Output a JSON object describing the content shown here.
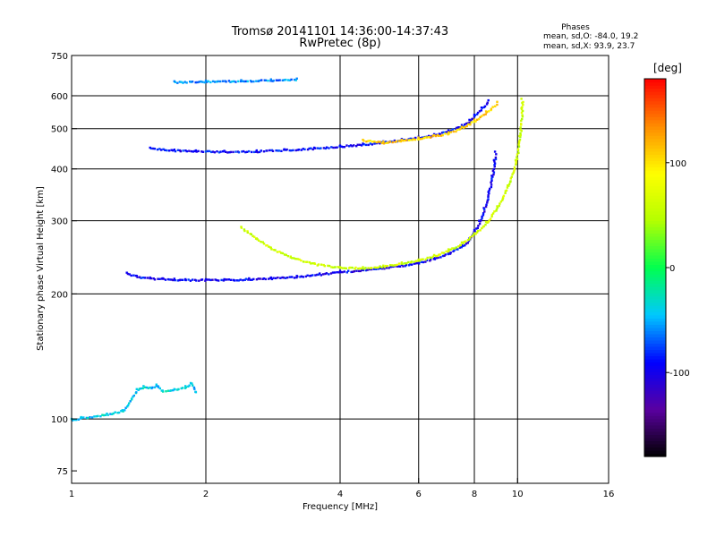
{
  "chart_data": {
    "type": "scatter",
    "title": "Tromsø 20141101 14:36:00-14:37:43",
    "subtitle": "RwPretec (8p)",
    "stats": {
      "heading": "Phases",
      "line_o": "mean, sd,O: -84.0, 19.2",
      "line_x": "mean, sd,X:  93.9, 23.7"
    },
    "xlabel": "Frequency [MHz]",
    "ylabel": "Stationary phase Virtual Height [km]",
    "x_scale": "log",
    "y_scale": "log",
    "xlim": [
      1,
      16
    ],
    "ylim": [
      70,
      750
    ],
    "x_ticks": [
      1,
      2,
      4,
      6,
      8,
      10,
      16
    ],
    "x_tick_labels": [
      "1",
      "2",
      "4",
      "6",
      "8",
      "10",
      "16"
    ],
    "y_ticks": [
      75,
      100,
      200,
      300,
      400,
      500,
      600,
      750
    ],
    "y_tick_labels": [
      "75",
      "100",
      "200",
      "300",
      "400",
      "500",
      "600",
      "750"
    ],
    "grid": true,
    "colorbar": {
      "label": "[deg]",
      "range": [
        -180,
        180
      ],
      "ticks": [
        100,
        0,
        -100
      ],
      "tick_labels": [
        "100",
        "0",
        "-100"
      ],
      "colors": [
        "#000000",
        "#5a00a0",
        "#0000ff",
        "#00c8ff",
        "#00ff50",
        "#b4ff00",
        "#ffff00",
        "#ff8c00",
        "#ff0000"
      ]
    },
    "series": [
      {
        "trace": "o-mode-f-layer",
        "points": [
          [
            1.33,
            225
          ],
          [
            1.4,
            221
          ],
          [
            1.5,
            219
          ],
          [
            1.6,
            218
          ],
          [
            1.7,
            217.5
          ],
          [
            1.8,
            217
          ],
          [
            2.0,
            217
          ],
          [
            2.2,
            217
          ],
          [
            2.5,
            218
          ],
          [
            2.8,
            219
          ],
          [
            3.2,
            221
          ],
          [
            3.6,
            224
          ],
          [
            4.0,
            227
          ],
          [
            4.5,
            229
          ],
          [
            5.0,
            232
          ],
          [
            5.5,
            235
          ],
          [
            6.0,
            239
          ],
          [
            6.5,
            244
          ],
          [
            7.0,
            252
          ],
          [
            7.5,
            262
          ],
          [
            7.8,
            272
          ],
          [
            8.0,
            285
          ],
          [
            8.2,
            300
          ],
          [
            8.4,
            322
          ],
          [
            8.6,
            352
          ],
          [
            8.75,
            385
          ],
          [
            8.85,
            420
          ],
          [
            8.9,
            440
          ]
        ],
        "phase": -95
      },
      {
        "trace": "o-mode-f2-echo",
        "points": [
          [
            1.5,
            450
          ],
          [
            1.7,
            445
          ],
          [
            1.9,
            443
          ],
          [
            2.2,
            442
          ],
          [
            2.6,
            443
          ],
          [
            3.0,
            446
          ],
          [
            3.5,
            450
          ],
          [
            4.0,
            455
          ],
          [
            4.5,
            460
          ],
          [
            5.0,
            466
          ],
          [
            5.5,
            472
          ],
          [
            6.0,
            478
          ],
          [
            6.5,
            485
          ],
          [
            7.0,
            495
          ],
          [
            7.5,
            510
          ],
          [
            7.8,
            525
          ],
          [
            8.0,
            540
          ],
          [
            8.3,
            562
          ],
          [
            8.6,
            585
          ]
        ],
        "phase": -90
      },
      {
        "trace": "x-mode-f-layer",
        "points": [
          [
            2.4,
            290
          ],
          [
            2.6,
            272
          ],
          [
            2.8,
            258
          ],
          [
            3.1,
            246
          ],
          [
            3.5,
            237
          ],
          [
            4.0,
            232
          ],
          [
            4.5,
            232
          ],
          [
            5.0,
            234
          ],
          [
            5.5,
            238
          ],
          [
            6.0,
            242
          ],
          [
            6.5,
            248
          ],
          [
            7.0,
            256
          ],
          [
            7.5,
            266
          ],
          [
            8.0,
            280
          ],
          [
            8.5,
            298
          ],
          [
            9.0,
            325
          ],
          [
            9.5,
            365
          ],
          [
            9.9,
            420
          ],
          [
            10.1,
            480
          ],
          [
            10.2,
            560
          ],
          [
            10.2,
            590
          ]
        ],
        "phase": 60
      },
      {
        "trace": "x-mode-f2-echo",
        "points": [
          [
            4.5,
            470
          ],
          [
            5.0,
            465
          ],
          [
            5.5,
            470
          ],
          [
            6.0,
            476
          ],
          [
            6.5,
            482
          ],
          [
            7.0,
            490
          ],
          [
            7.5,
            505
          ],
          [
            8.0,
            525
          ],
          [
            8.5,
            550
          ],
          [
            9.0,
            580
          ]
        ],
        "phase": 110
      },
      {
        "trace": "top-trace",
        "points": [
          [
            1.7,
            650
          ],
          [
            2.0,
            652
          ],
          [
            2.4,
            654
          ],
          [
            2.8,
            657
          ],
          [
            3.2,
            660
          ]
        ],
        "phase": -60
      },
      {
        "trace": "low-echoes",
        "points": [
          [
            1.0,
            100
          ],
          [
            1.05,
            101
          ],
          [
            1.2,
            103
          ],
          [
            1.3,
            105
          ],
          [
            1.4,
            118
          ],
          [
            1.45,
            120
          ],
          [
            1.5,
            119
          ],
          [
            1.55,
            121
          ],
          [
            1.6,
            117
          ],
          [
            1.7,
            118
          ],
          [
            1.8,
            120
          ],
          [
            1.85,
            122
          ],
          [
            1.9,
            116
          ]
        ],
        "phase": -40
      }
    ]
  }
}
